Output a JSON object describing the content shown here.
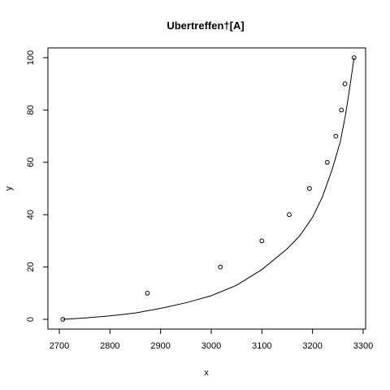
{
  "chart_data": {
    "type": "scatter",
    "title": "Ubertreffen†[A]",
    "xlabel": "x",
    "ylabel": "y",
    "xlim": [
      2700,
      3300
    ],
    "ylim": [
      0,
      100
    ],
    "x_ticks": [
      2700,
      2800,
      2900,
      3000,
      3100,
      3200,
      3300
    ],
    "y_ticks": [
      0,
      20,
      40,
      60,
      80,
      100
    ],
    "grid": false,
    "series": [
      {
        "kind": "points",
        "marker": "open-circle",
        "points": [
          {
            "x": 2707,
            "y": 0
          },
          {
            "x": 2874,
            "y": 10
          },
          {
            "x": 3018,
            "y": 20
          },
          {
            "x": 3100,
            "y": 30
          },
          {
            "x": 3154,
            "y": 40
          },
          {
            "x": 3194,
            "y": 50
          },
          {
            "x": 3229,
            "y": 60
          },
          {
            "x": 3246,
            "y": 70
          },
          {
            "x": 3257,
            "y": 80
          },
          {
            "x": 3264,
            "y": 90
          },
          {
            "x": 3282,
            "y": 100
          }
        ]
      },
      {
        "kind": "line",
        "points": [
          {
            "x": 2707,
            "y": 0
          },
          {
            "x": 2750,
            "y": 0.5
          },
          {
            "x": 2800,
            "y": 1.3
          },
          {
            "x": 2850,
            "y": 2.4
          },
          {
            "x": 2900,
            "y": 4.2
          },
          {
            "x": 2950,
            "y": 6.3
          },
          {
            "x": 3000,
            "y": 9
          },
          {
            "x": 3050,
            "y": 13
          },
          {
            "x": 3100,
            "y": 19
          },
          {
            "x": 3150,
            "y": 27
          },
          {
            "x": 3175,
            "y": 32
          },
          {
            "x": 3200,
            "y": 39
          },
          {
            "x": 3220,
            "y": 47
          },
          {
            "x": 3240,
            "y": 58
          },
          {
            "x": 3255,
            "y": 68
          },
          {
            "x": 3265,
            "y": 78
          },
          {
            "x": 3273,
            "y": 88
          },
          {
            "x": 3282,
            "y": 100
          }
        ]
      }
    ]
  }
}
